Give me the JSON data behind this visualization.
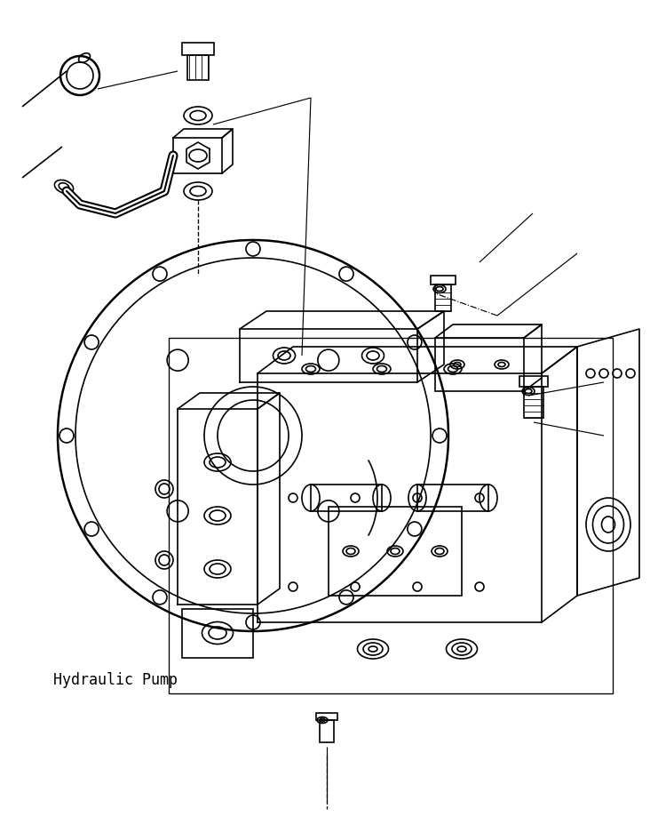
{
  "title": "",
  "label_hydraulic_pump": "Hydraulic Pump",
  "label_font_size": 12,
  "bg_color": "#ffffff",
  "line_color": "#000000",
  "line_width": 1.2,
  "fig_width": 7.32,
  "fig_height": 9.19,
  "dpi": 100
}
